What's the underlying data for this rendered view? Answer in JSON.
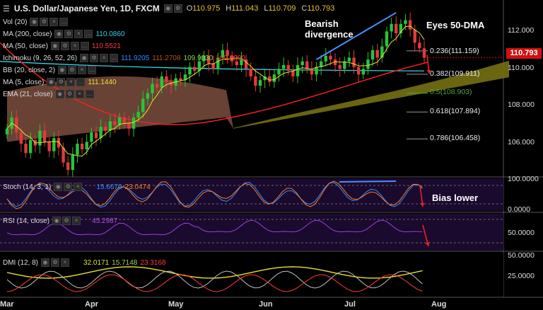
{
  "header": {
    "icon": "bars-icon",
    "title": "U.S. Dollar/Japanese Yen, 1D, FXCM",
    "ohlc": [
      {
        "k": "O",
        "v": "110.975"
      },
      {
        "k": "H",
        "v": "111.043"
      },
      {
        "k": "L",
        "v": "110.709"
      },
      {
        "k": "C",
        "v": "110.793"
      }
    ]
  },
  "indicators": [
    {
      "label": "Vol (20)",
      "values": [],
      "colors": []
    },
    {
      "label": "MA (200, close)",
      "values": [
        "110.0860"
      ],
      "colors": [
        "#36d1e6"
      ]
    },
    {
      "label": "MA (50, close)",
      "values": [
        "110.5521"
      ],
      "colors": [
        "#ff3a3a"
      ]
    },
    {
      "label": "Ichimoku (9, 26, 52, 26)",
      "values": [
        "111.9205",
        "111.2708",
        "109.9030",
        "109.0000"
      ],
      "colors": [
        "#2f8fff",
        "#b5561f",
        "#8fd14f",
        "#ff3a3a"
      ]
    },
    {
      "label": "BB (20, close, 2)",
      "values": [],
      "colors": []
    },
    {
      "label": "MA (5, close)",
      "values": [
        "111.1440"
      ],
      "colors": [
        "#e7e22a"
      ]
    },
    {
      "label": "EMA (21, close)",
      "values": [],
      "colors": []
    }
  ],
  "annotations": {
    "bearish": [
      "Bearish",
      "divergence"
    ],
    "eyes": "Eyes 50-DMA",
    "bias": "Bias lower"
  },
  "fib_levels": [
    {
      "label": "0.236(111.159)",
      "price": 111.159,
      "color": "#eeeeee"
    },
    {
      "label": "0.382(109.911)",
      "price": 109.911,
      "color": "#eeeeee"
    },
    {
      "label": "0.5(108.903)",
      "price": 108.903,
      "color": "#49a849"
    },
    {
      "label": "0.618(107.894)",
      "price": 107.894,
      "color": "#eeeeee"
    },
    {
      "label": "0.786(106.458)",
      "price": 106.458,
      "color": "#eeeeee"
    }
  ],
  "price_axis": [
    "112.000",
    "110.000",
    "108.000",
    "106.000"
  ],
  "current_price": "110.793",
  "stoch": {
    "label": "Stoch (14, 3, 1)",
    "k": "15.6670",
    "d": "23.0474",
    "axis": [
      "100.0000",
      "0.0000"
    ]
  },
  "rsi": {
    "label": "RSI (14, close)",
    "value": "45.2987",
    "axis": [
      "50.0000"
    ]
  },
  "dmi": {
    "label": "DMI (12, 8)",
    "v1": "32.0171",
    "v2": "15.7148",
    "v3": "23.3168",
    "axis": [
      "50.0000",
      "25.0000"
    ]
  },
  "x_axis": [
    "Mar",
    "Apr",
    "May",
    "Jun",
    "Jul",
    "Aug"
  ],
  "chart_data": {
    "type": "line",
    "title": "U.S. Dollar/Japanese Yen, 1D, FXCM",
    "xlabel": "",
    "ylabel": "",
    "ylim": [
      104.5,
      113.5
    ],
    "months": [
      "Mar",
      "Apr",
      "May",
      "Jun",
      "Jul",
      "Aug"
    ],
    "close": [
      107.0,
      107.6,
      106.8,
      106.2,
      105.7,
      106.4,
      106.1,
      106.9,
      106.3,
      105.8,
      106.5,
      106.0,
      105.2,
      104.8,
      105.6,
      106.2,
      105.9,
      106.3,
      106.8,
      106.5,
      107.1,
      106.9,
      107.4,
      107.2,
      107.6,
      107.3,
      107.0,
      107.6,
      107.9,
      108.6,
      108.9,
      109.4,
      109.2,
      109.8,
      109.5,
      109.3,
      109.7,
      109.6,
      109.9,
      110.3,
      110.1,
      110.6,
      110.9,
      110.5,
      110.2,
      110.8,
      111.2,
      110.9,
      110.6,
      110.4,
      110.7,
      110.2,
      109.8,
      109.3,
      109.6,
      109.8,
      109.5,
      109.9,
      110.2,
      110.4,
      110.1,
      109.8,
      110.4,
      110.6,
      110.2,
      109.9,
      110.3,
      110.6,
      110.9,
      110.7,
      110.4,
      110.2,
      110.6,
      110.8,
      110.3,
      109.9,
      110.2,
      110.7,
      111.2,
      110.8,
      111.4,
      112.2,
      112.6,
      112.1,
      112.6,
      112.8,
      112.3,
      111.6,
      111.3,
      110.79
    ],
    "ma50": {
      "start": 106.7,
      "mid": 107.8,
      "end": 110.55
    },
    "ma200_level": 110.086,
    "fib_retracement": [
      111.159,
      109.911,
      108.903,
      107.894,
      106.458
    ],
    "stoch_last": [
      15.667,
      23.0474
    ],
    "rsi_last": 45.2987,
    "dmi_last": [
      32.0171,
      15.7148,
      23.3168
    ],
    "grid": false,
    "legend": "top-left"
  }
}
